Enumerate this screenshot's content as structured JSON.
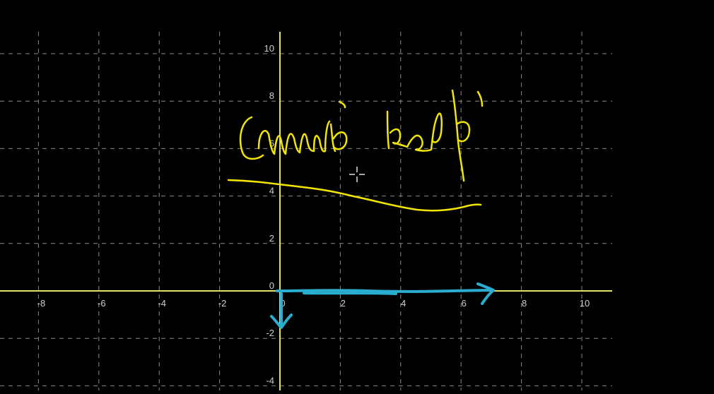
{
  "graph": {
    "x_min": -8,
    "x_max": 10,
    "y_min": -4,
    "y_max": 10,
    "tick_step": 2,
    "x_tick_labels": [
      "-8",
      "-6",
      "-4",
      "-2",
      "0",
      "2",
      "4",
      "6",
      "8",
      "10"
    ],
    "y_tick_labels": [
      "10",
      "8",
      "6",
      "4",
      "2",
      "0",
      "-2",
      "-4"
    ],
    "grid": true
  },
  "colors": {
    "background": "#000000",
    "axis": "#e4e06a",
    "grid": "#8a8a8a",
    "tick_label": "#cfcfcf",
    "ink_yellow": "#f2e600",
    "ink_blue": "#2aaed0",
    "cursor": "#e0e0e0"
  },
  "annotations": {
    "handwriting_icon": "handwritten-scribble-icon",
    "cursor_icon": "crosshair-cursor-icon"
  }
}
